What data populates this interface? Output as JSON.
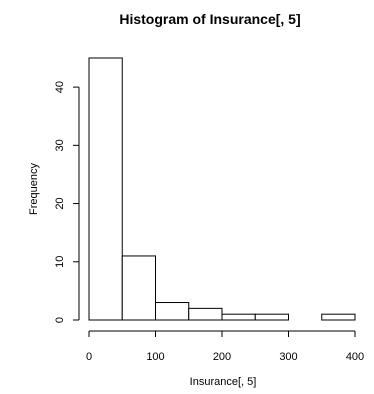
{
  "chart_data": {
    "type": "bar",
    "title": "Histogram of Insurance[, 5]",
    "xlabel": "Insurance[, 5]",
    "ylabel": "Frequency",
    "bins": [
      {
        "start": 0,
        "end": 50,
        "value": 45
      },
      {
        "start": 50,
        "end": 100,
        "value": 11
      },
      {
        "start": 100,
        "end": 150,
        "value": 3
      },
      {
        "start": 150,
        "end": 200,
        "value": 2
      },
      {
        "start": 200,
        "end": 250,
        "value": 1
      },
      {
        "start": 250,
        "end": 300,
        "value": 1
      },
      {
        "start": 300,
        "end": 350,
        "value": 0
      },
      {
        "start": 350,
        "end": 400,
        "value": 1
      }
    ],
    "xlim": [
      0,
      400
    ],
    "ylim": [
      0,
      45
    ],
    "xticks": [
      "0",
      "100",
      "200",
      "300",
      "400"
    ],
    "yticks": [
      "0",
      "10",
      "20",
      "30",
      "40"
    ],
    "grid": false,
    "colors": {
      "bar_fill": "#ffffff",
      "bar_stroke": "#000000",
      "axis": "#000000"
    }
  }
}
